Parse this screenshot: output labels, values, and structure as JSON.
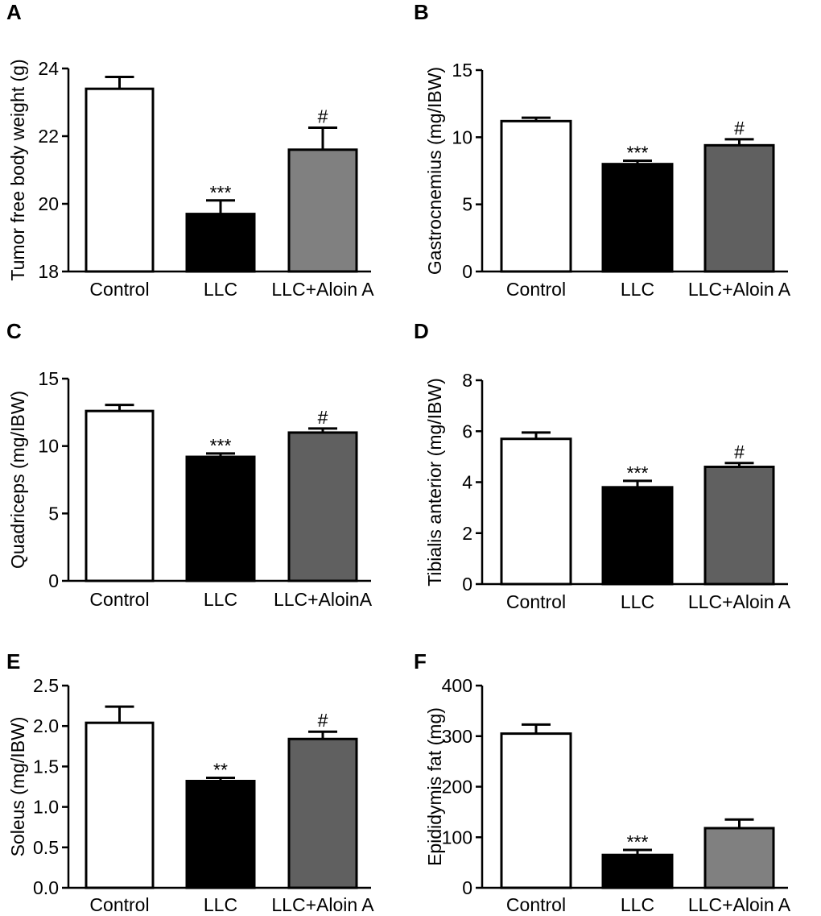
{
  "chart_data": [
    {
      "type": "bar",
      "panel": "A",
      "ylabel": "Tumor free body weight (g)",
      "ylim": [
        18,
        24
      ],
      "yticks": [
        "18",
        "20",
        "22",
        "24"
      ],
      "categories": [
        "Control",
        "LLC",
        "LLC+Aloin A"
      ],
      "values": [
        23.4,
        19.7,
        21.6
      ],
      "errors": [
        0.35,
        0.4,
        0.65
      ],
      "significance": [
        "",
        "***",
        "#"
      ],
      "colors": [
        "#ffffff",
        "#000000",
        "#808080"
      ]
    },
    {
      "type": "bar",
      "panel": "B",
      "ylabel": "Gastrocnemius (mg/IBW)",
      "ylim": [
        0,
        15
      ],
      "yticks": [
        "0",
        "5",
        "10",
        "15"
      ],
      "categories": [
        "Control",
        "LLC",
        "LLC+Aloin A"
      ],
      "values": [
        11.2,
        8.0,
        9.4
      ],
      "errors": [
        0.25,
        0.25,
        0.45
      ],
      "significance": [
        "",
        "***",
        "#"
      ],
      "colors": [
        "#ffffff",
        "#000000",
        "#606060"
      ]
    },
    {
      "type": "bar",
      "panel": "C",
      "ylabel": "Quadriceps (mg/IBW)",
      "ylim": [
        0,
        15
      ],
      "yticks": [
        "0",
        "5",
        "10",
        "15"
      ],
      "categories": [
        "Control",
        "LLC",
        "LLC+AloinA"
      ],
      "values": [
        12.6,
        9.2,
        11.0
      ],
      "errors": [
        0.45,
        0.25,
        0.3
      ],
      "significance": [
        "",
        "***",
        "#"
      ],
      "colors": [
        "#ffffff",
        "#000000",
        "#606060"
      ]
    },
    {
      "type": "bar",
      "panel": "D",
      "ylabel": "Tibialis anterior (mg/IBW)",
      "ylim": [
        0,
        8
      ],
      "yticks": [
        "0",
        "2",
        "4",
        "6",
        "8"
      ],
      "categories": [
        "Control",
        "LLC",
        "LLC+Aloin A"
      ],
      "values": [
        5.7,
        3.8,
        4.6
      ],
      "errors": [
        0.25,
        0.25,
        0.15
      ],
      "significance": [
        "",
        "***",
        "#"
      ],
      "colors": [
        "#ffffff",
        "#000000",
        "#606060"
      ]
    },
    {
      "type": "bar",
      "panel": "E",
      "ylabel": "Soleus (mg/IBW)",
      "ylim": [
        0,
        2.5
      ],
      "yticks": [
        "0.0",
        "0.5",
        "1.0",
        "1.5",
        "2.0",
        "2.5"
      ],
      "categories": [
        "Control",
        "LLC",
        "LLC+Aloin A"
      ],
      "values": [
        2.04,
        1.32,
        1.84
      ],
      "errors": [
        0.2,
        0.04,
        0.09
      ],
      "significance": [
        "",
        "**",
        "#"
      ],
      "colors": [
        "#ffffff",
        "#000000",
        "#606060"
      ]
    },
    {
      "type": "bar",
      "panel": "F",
      "ylabel": "Epididymis fat (mg)",
      "ylim": [
        0,
        400
      ],
      "yticks": [
        "0",
        "100",
        "200",
        "300",
        "400"
      ],
      "categories": [
        "Control",
        "LLC",
        "LLC+Aloin A"
      ],
      "values": [
        305,
        65,
        118
      ],
      "errors": [
        18,
        10,
        17
      ],
      "significance": [
        "",
        "***",
        ""
      ],
      "colors": [
        "#ffffff",
        "#000000",
        "#808080"
      ]
    }
  ]
}
